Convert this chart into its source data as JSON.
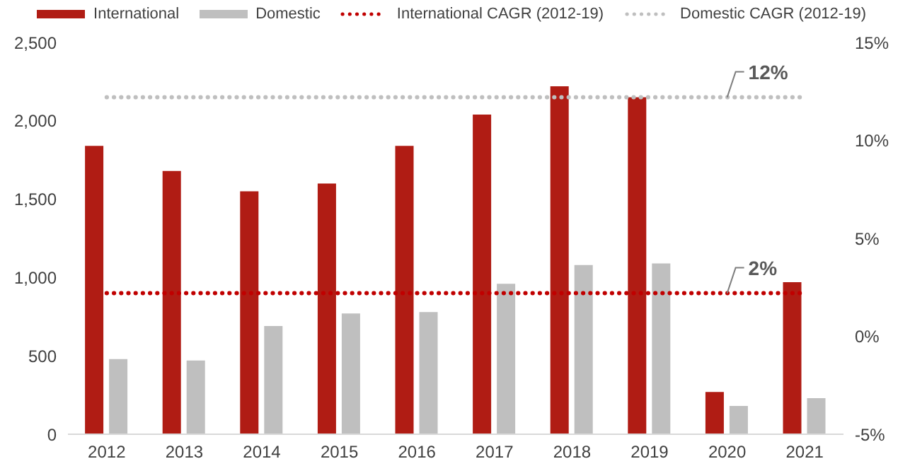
{
  "chart_data": {
    "type": "bar",
    "categories": [
      "2012",
      "2013",
      "2014",
      "2015",
      "2016",
      "2017",
      "2018",
      "2019",
      "2020",
      "2021"
    ],
    "series": [
      {
        "name": "International",
        "color": "#b01c14",
        "values": [
          1840,
          1680,
          1550,
          1600,
          1840,
          2040,
          2220,
          2150,
          270,
          970
        ]
      },
      {
        "name": "Domestic",
        "color": "#bfbfbf",
        "values": [
          480,
          470,
          690,
          770,
          780,
          960,
          1080,
          1090,
          180,
          230
        ]
      },
      {
        "name": "International CAGR (2012-19)",
        "type": "line",
        "axis": "y2",
        "color": "#c00000",
        "line_style": "dotted",
        "values": [
          2.2,
          2.2,
          2.2,
          2.2,
          2.2,
          2.2,
          2.2,
          2.2,
          2.2,
          2.2
        ]
      },
      {
        "name": "Domestic CAGR (2012-19)",
        "type": "line",
        "axis": "y2",
        "color": "#bfbfbf",
        "line_style": "dotted",
        "values": [
          12.2,
          12.2,
          12.2,
          12.2,
          12.2,
          12.2,
          12.2,
          12.2,
          12.2,
          12.2
        ]
      }
    ],
    "ylim": [
      0,
      2500
    ],
    "yticks": [
      {
        "value": 0,
        "label": "0"
      },
      {
        "value": 500,
        "label": "500"
      },
      {
        "value": 1000,
        "label": "1,000"
      },
      {
        "value": 1500,
        "label": "1,500"
      },
      {
        "value": 2000,
        "label": "2,000"
      },
      {
        "value": 2500,
        "label": "2,500"
      }
    ],
    "y2lim": [
      -5,
      15
    ],
    "y2ticks": [
      {
        "value": -5,
        "label": "-5%"
      },
      {
        "value": 0,
        "label": "0%"
      },
      {
        "value": 5,
        "label": "5%"
      },
      {
        "value": 10,
        "label": "10%"
      },
      {
        "value": 15,
        "label": "15%"
      }
    ],
    "annotations": [
      "2%",
      "12%"
    ],
    "marker": "none",
    "grid": false,
    "legend": "top"
  }
}
